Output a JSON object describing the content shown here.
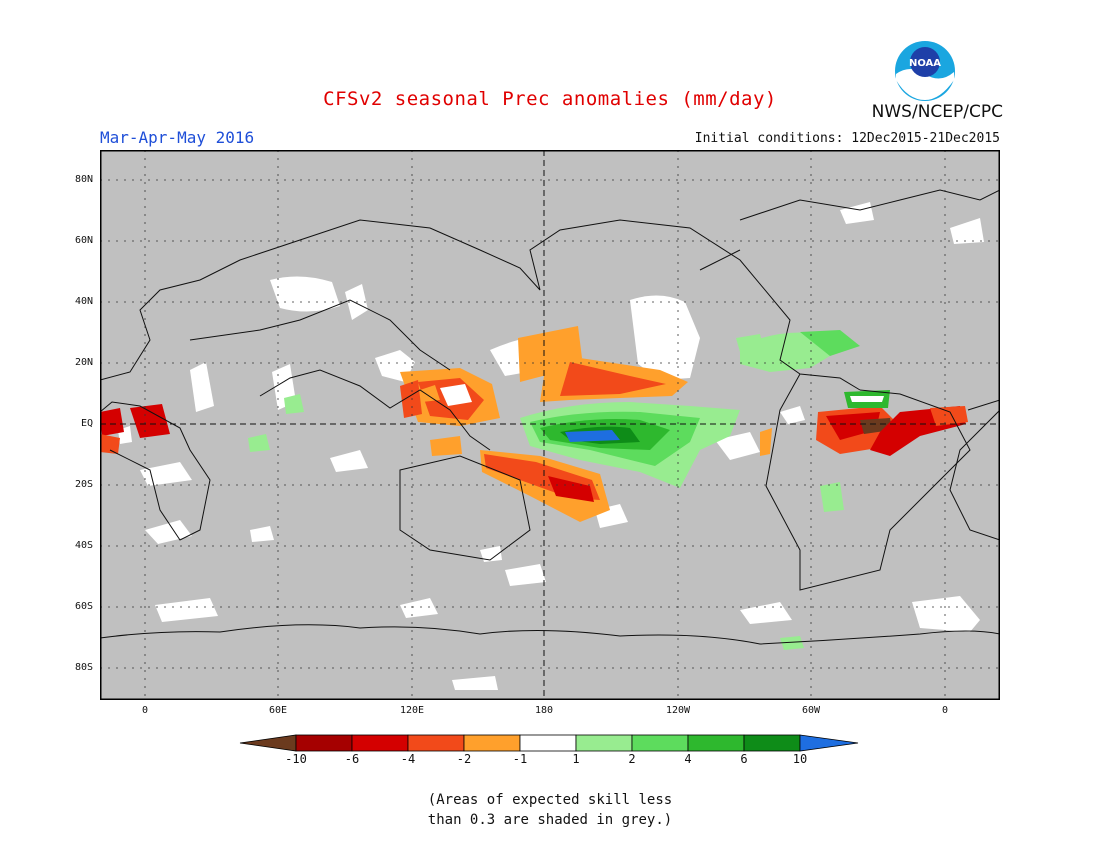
{
  "header": {
    "title": "CFSv2 seasonal Prec anomalies (mm/day)",
    "period": "Mar-Apr-May 2016",
    "initial_conditions": "Initial conditions: 12Dec2015-21Dec2015",
    "agency": "NWS/NCEP/CPC",
    "logo_text": "NOAA"
  },
  "map": {
    "latitude_labels": [
      "80N",
      "60N",
      "40N",
      "20N",
      "EQ",
      "20S",
      "40S",
      "60S",
      "80S"
    ],
    "longitude_labels": [
      "0",
      "60E",
      "120E",
      "180",
      "120W",
      "60W",
      "0"
    ],
    "background_grey": "#c0c0c0"
  },
  "colorbar": {
    "labels": [
      "-10",
      "-6",
      "-4",
      "-2",
      "-1",
      "1",
      "2",
      "4",
      "6",
      "10"
    ],
    "colors": [
      "#6b3a1e",
      "#a50000",
      "#d40000",
      "#f24a1a",
      "#ffa02c",
      "#ffffff",
      "#98ec90",
      "#5ddc5d",
      "#2eb82e",
      "#0e8c18",
      "#1e6ee0"
    ]
  },
  "notes": {
    "line1": "(Areas of expected skill less",
    "line2": "than 0.3 are shaded in grey.)"
  }
}
